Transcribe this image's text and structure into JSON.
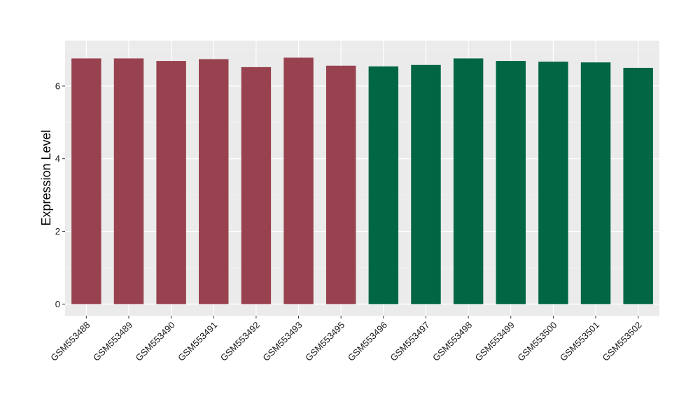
{
  "chart_data": {
    "type": "bar",
    "title": "",
    "xlabel": "",
    "ylabel": "Expression Level",
    "ylim": [
      -0.32,
      7.25
    ],
    "yticks": [
      0,
      2,
      4,
      6
    ],
    "ytick_labels": [
      "0",
      "2",
      "4",
      "6"
    ],
    "grid": true,
    "panel_background": "#EBEBEB",
    "categories": [
      "GSM553488",
      "GSM553489",
      "GSM553490",
      "GSM553491",
      "GSM553492",
      "GSM553493",
      "GSM553495",
      "GSM553496",
      "GSM553497",
      "GSM553498",
      "GSM553499",
      "GSM553500",
      "GSM553501",
      "GSM553502"
    ],
    "values": [
      6.76,
      6.76,
      6.69,
      6.74,
      6.52,
      6.78,
      6.56,
      6.54,
      6.58,
      6.76,
      6.69,
      6.67,
      6.65,
      6.5
    ],
    "bar_colors": [
      "#99424F",
      "#99424F",
      "#99424F",
      "#99424F",
      "#99424F",
      "#99424F",
      "#99424F",
      "#006644",
      "#006644",
      "#006644",
      "#006644",
      "#006644",
      "#006644",
      "#006644"
    ]
  }
}
